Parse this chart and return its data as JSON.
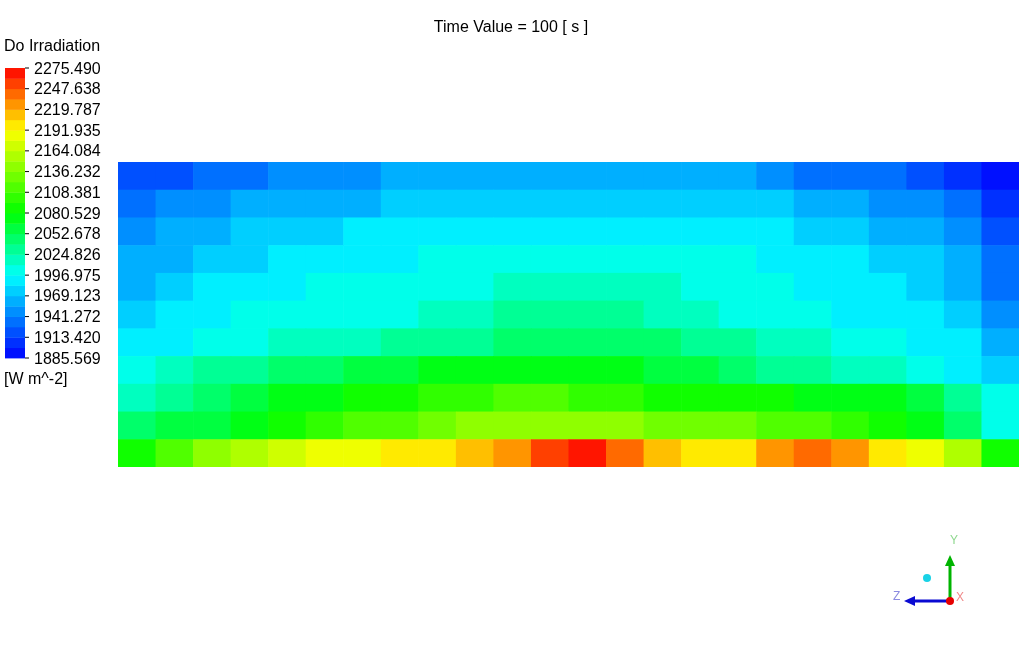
{
  "chart_data": {
    "type": "heatmap",
    "title": "Time Value = 100 [ s ]",
    "clabel": "Do Irradiation",
    "annotations": [
      "[W m^-2]",
      "Y",
      "Z",
      "X"
    ],
    "categories": [
      null,
      null,
      null,
      null,
      null,
      null,
      null,
      null,
      null,
      null,
      null,
      null,
      null,
      null,
      null,
      null,
      null,
      null,
      null,
      null,
      null,
      null,
      null,
      null
    ],
    "y_categories": [
      null,
      null,
      null,
      null,
      null,
      null,
      null,
      null,
      null,
      null,
      null
    ],
    "cells": [
      [
        1915,
        1925,
        1935,
        1940,
        1945,
        1950,
        1955,
        1958,
        1960,
        1962,
        1965,
        1967,
        1968,
        1968,
        1966,
        1962,
        1958,
        1950,
        1940,
        1935,
        1928,
        1920,
        1905,
        1895
      ],
      [
        1936,
        1945,
        1952,
        1957,
        1962,
        1966,
        1969,
        1972,
        1975,
        1978,
        1980,
        1982,
        1983,
        1983,
        1982,
        1979,
        1975,
        1970,
        1966,
        1960,
        1955,
        1946,
        1935,
        1912
      ],
      [
        1950,
        1960,
        1967,
        1972,
        1976,
        1980,
        1984,
        1987,
        1989,
        1991,
        1992,
        1993,
        1994,
        1994,
        1993,
        1991,
        1988,
        1985,
        1980,
        1975,
        1968,
        1960,
        1946,
        1920
      ],
      [
        1960,
        1968,
        1975,
        1980,
        1985,
        1990,
        1993,
        1996,
        1998,
        2000,
        2002,
        2004,
        2005,
        2005,
        2003,
        2000,
        1997,
        1993,
        1990,
        1985,
        1980,
        1970,
        1958,
        1930
      ],
      [
        1968,
        1978,
        1985,
        1990,
        1994,
        1997,
        2000,
        2002,
        2005,
        2008,
        2012,
        2015,
        2016,
        2015,
        2012,
        2008,
        2003,
        1998,
        1995,
        1990,
        1985,
        1978,
        1965,
        1938
      ],
      [
        1978,
        1988,
        1995,
        1998,
        2000,
        2003,
        2006,
        2010,
        2015,
        2020,
        2025,
        2028,
        2030,
        2028,
        2022,
        2015,
        2008,
        2003,
        2000,
        1995,
        1990,
        1985,
        1975,
        1945
      ],
      [
        1990,
        1995,
        2000,
        2005,
        2012,
        2016,
        2020,
        2025,
        2030,
        2035,
        2040,
        2045,
        2048,
        2045,
        2040,
        2032,
        2025,
        2018,
        2012,
        2006,
        2002,
        1996,
        1990,
        1965
      ],
      [
        2008,
        2018,
        2030,
        2038,
        2045,
        2052,
        2058,
        2065,
        2072,
        2075,
        2078,
        2080,
        2075,
        2070,
        2065,
        2055,
        2045,
        2038,
        2030,
        2022,
        2015,
        2005,
        1995,
        1970
      ],
      [
        2020,
        2035,
        2050,
        2062,
        2075,
        2080,
        2085,
        2090,
        2095,
        2102,
        2110,
        2112,
        2098,
        2095,
        2092,
        2090,
        2087,
        2084,
        2080,
        2075,
        2068,
        2055,
        2035,
        2000
      ],
      [
        2040,
        2055,
        2065,
        2078,
        2090,
        2100,
        2110,
        2120,
        2130,
        2138,
        2145,
        2150,
        2148,
        2142,
        2135,
        2130,
        2125,
        2118,
        2110,
        2100,
        2090,
        2075,
        2050,
        2010
      ],
      [
        2090,
        2120,
        2140,
        2160,
        2175,
        2185,
        2190,
        2198,
        2205,
        2215,
        2225,
        2255,
        2262,
        2240,
        2215,
        2205,
        2205,
        2220,
        2245,
        2230,
        2200,
        2180,
        2160,
        2090
      ]
    ],
    "clim": [
      1885.569,
      2275.49
    ],
    "cticks": [
      {
        "value": 2275.49,
        "label": "2275.490"
      },
      2247.638,
      2219.787,
      2191.935,
      2164.084,
      2136.232,
      2108.381,
      2080.529,
      2052.678,
      2024.826,
      1996.975,
      1969.123,
      1941.272,
      {
        "value": 1913.42,
        "label": "1913.420"
      },
      1885.569
    ]
  }
}
